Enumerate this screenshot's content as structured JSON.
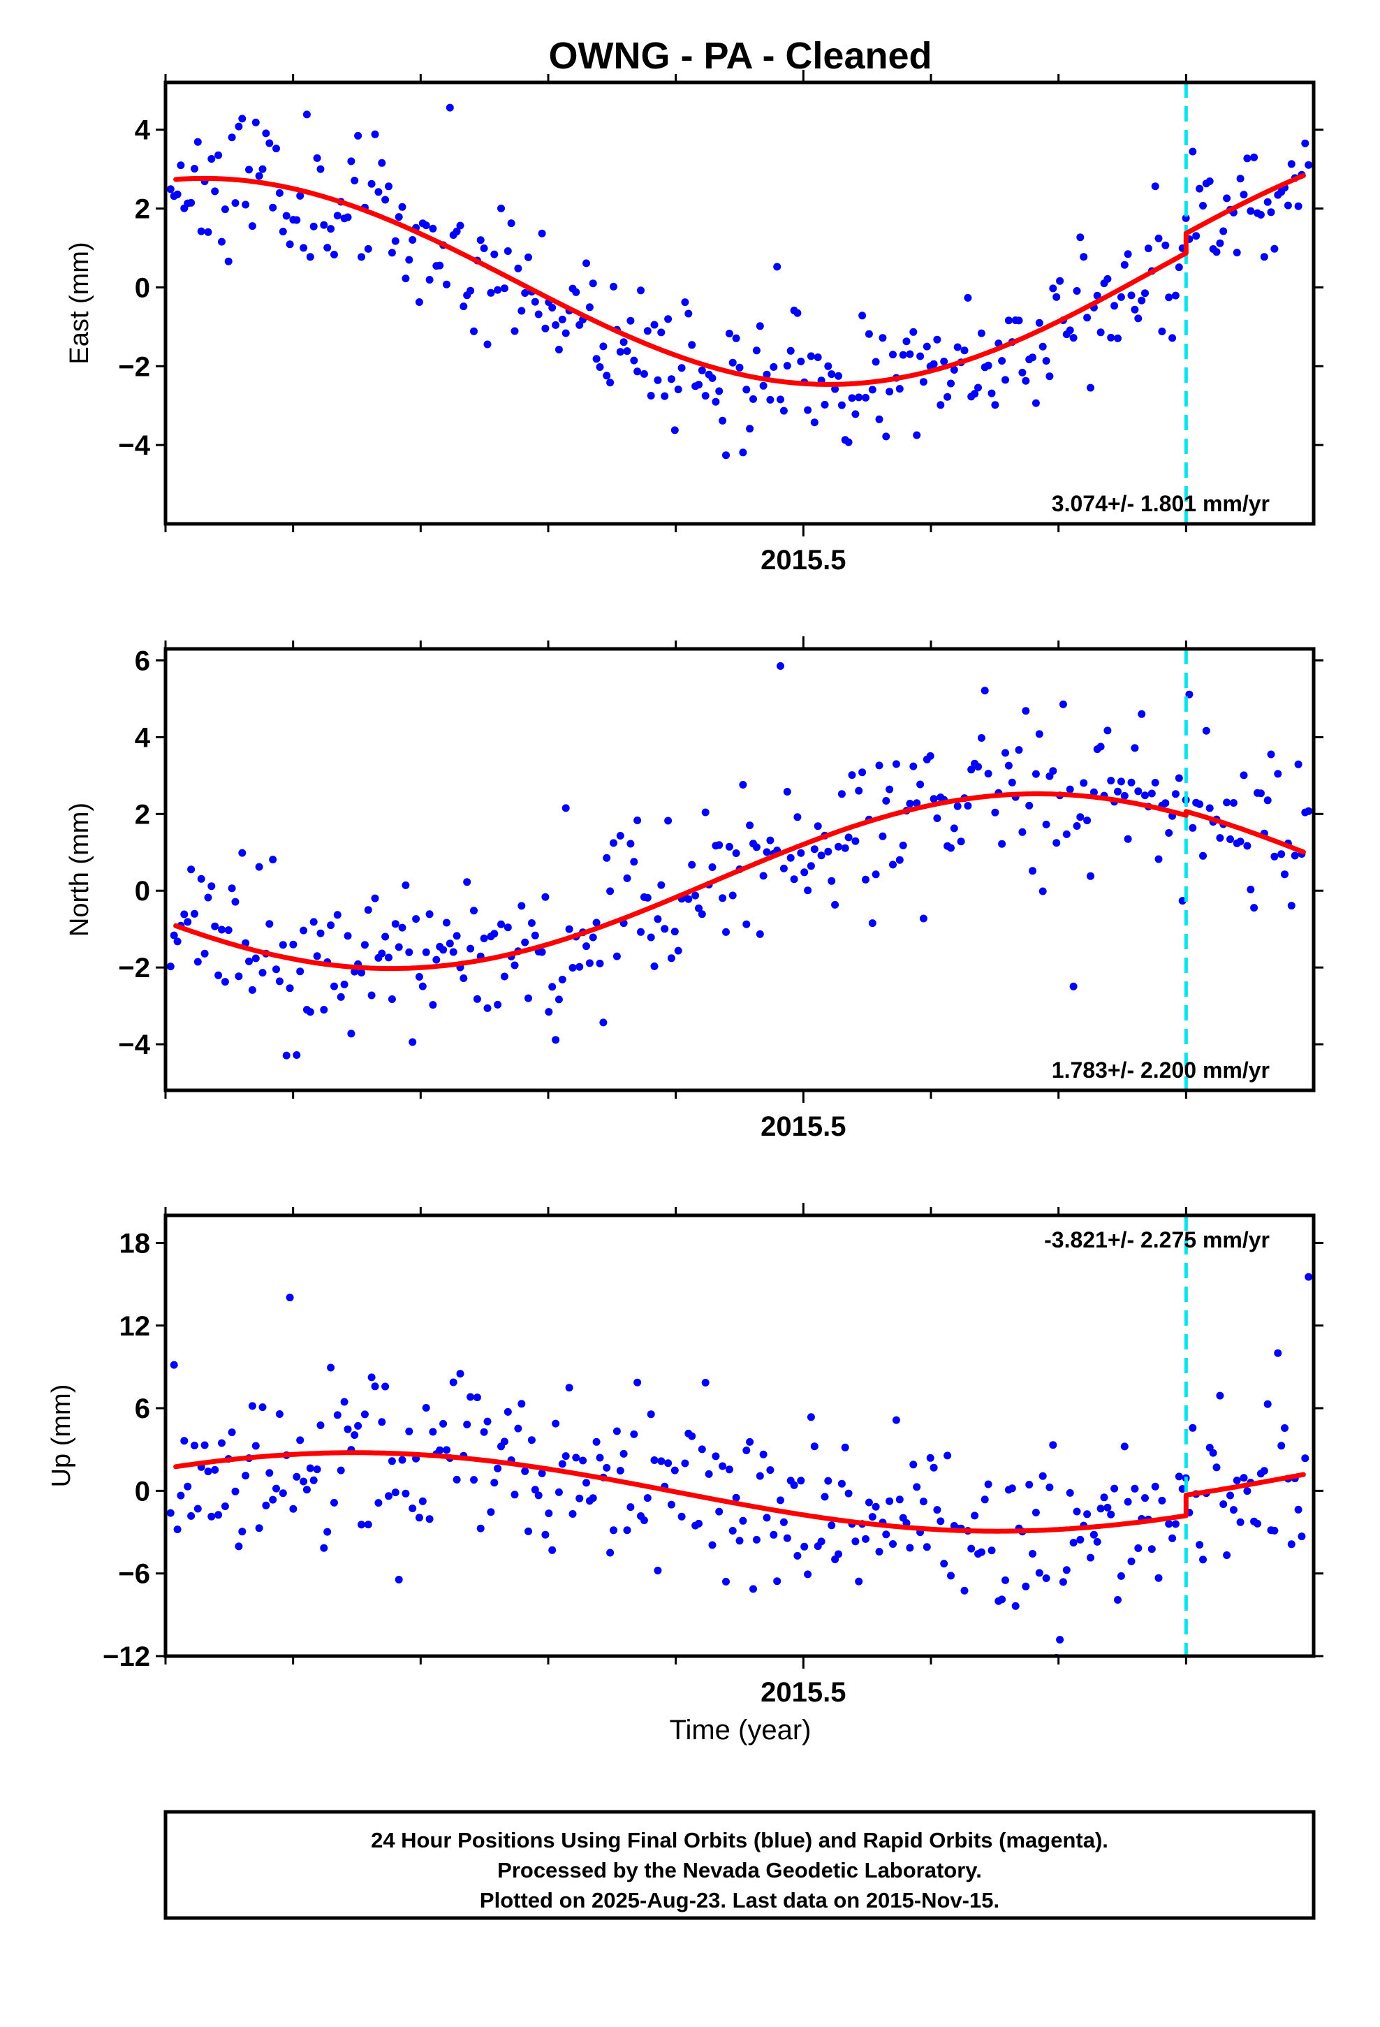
{
  "title": "OWNG  - PA - Cleaned",
  "x_axis_label": "Time (year)",
  "colors": {
    "data_points": "#0000ff",
    "model_fit": "#ff0000",
    "event_marker": "#00e5ee",
    "frame": "#000000"
  },
  "footer": {
    "line1": "24 Hour Positions Using Final Orbits (blue) and Rapid Orbits (magenta).",
    "line2": "Processed by the Nevada Geodetic Laboratory.",
    "line3": "Plotted on 2025-Aug-23. Last data on 2015-Nov-15."
  },
  "chart_data": [
    {
      "type": "scatter",
      "panel": "east",
      "title": "",
      "ylabel": "East (mm)",
      "xlabel": "",
      "xtick_label": "2015.5",
      "xtick_value": 2015.5,
      "xlim": [
        2015.0,
        2015.9
      ],
      "ylim": [
        -6.0,
        5.2
      ],
      "ytick_values": [
        -4,
        -2,
        0,
        2,
        4
      ],
      "ytick_labels": [
        "−4",
        "−2",
        "0",
        "2",
        "4"
      ],
      "rate_text": "3.074+/- 1.801 mm/yr",
      "event_x": 2015.8,
      "fit": {
        "offset": 0.0,
        "trend": 0.55,
        "amp": 2.75,
        "phase_year": 2015.025,
        "step_at": 2015.8,
        "step_size": 0.5
      },
      "noise": 0.85,
      "outlier_rate": 0.05,
      "seed": 11,
      "n_points": 335,
      "grid": false
    },
    {
      "type": "scatter",
      "panel": "north",
      "title": "",
      "ylabel": "North (mm)",
      "xlabel": "",
      "xtick_label": "2015.5",
      "xtick_value": 2015.5,
      "xlim": [
        2015.0,
        2015.9
      ],
      "ylim": [
        -5.2,
        6.3
      ],
      "ytick_values": [
        -4,
        -2,
        0,
        2,
        4,
        6
      ],
      "ytick_labels": [
        "−4",
        "−2",
        "0",
        "2",
        "4",
        "6"
      ],
      "rate_text": "1.783+/- 2.200 mm/yr",
      "event_x": 2015.8,
      "fit": {
        "offset": 0.12,
        "trend": 0.3,
        "amp": -2.2,
        "phase_year": 2015.18,
        "step_at": 2015.8,
        "step_size": 0.1
      },
      "noise": 1.0,
      "outlier_rate": 0.05,
      "seed": 23,
      "n_points": 335,
      "grid": false
    },
    {
      "type": "scatter",
      "panel": "up",
      "title": "",
      "ylabel": "Up (mm)",
      "xlabel": "",
      "xtick_label": "2015.5",
      "xtick_value": 2015.5,
      "xlim": [
        2015.0,
        2015.9
      ],
      "ylim": [
        -12.0,
        20.0
      ],
      "ytick_values": [
        -12,
        -6,
        0,
        6,
        12,
        18
      ],
      "ytick_labels": [
        "−12",
        "−6",
        "0",
        "6",
        "12",
        "18"
      ],
      "rate_text": "-3.821+/- 2.275 mm/yr",
      "event_x": 2015.8,
      "fit": {
        "offset": 0.0,
        "trend": -0.2,
        "amp": 2.8,
        "phase_year": 2015.15,
        "step_at": 2015.8,
        "step_size": 1.5
      },
      "noise": 3.0,
      "outlier_rate": 0.06,
      "seed": 37,
      "n_points": 335,
      "grid": false
    }
  ]
}
